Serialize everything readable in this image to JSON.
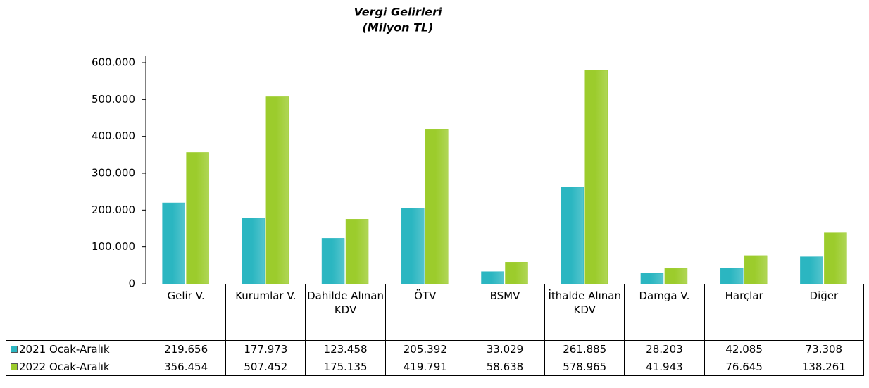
{
  "chart_data": {
    "type": "bar",
    "title": "Vergi Gelirleri",
    "subtitle": "(Milyon TL)",
    "categories": [
      "Gelir V.",
      "Kurumlar V.",
      "Dahilde Alınan KDV",
      "ÖTV",
      "BSMV",
      "İthalde Alınan KDV",
      "Damga V.",
      "Harçlar",
      "Diğer"
    ],
    "series": [
      {
        "name": "2021 Ocak-Aralık",
        "color": "#2bb6c1",
        "values": [
          219656,
          177973,
          123458,
          205392,
          33029,
          261885,
          28203,
          42085,
          73308
        ],
        "value_labels": [
          "219.656",
          "177.973",
          "123.458",
          "205.392",
          "33.029",
          "261.885",
          "28.203",
          "42.085",
          "73.308"
        ]
      },
      {
        "name": "2022 Ocak-Aralık",
        "color": "#9ccc2c",
        "values": [
          356454,
          507452,
          175135,
          419791,
          58638,
          578965,
          41943,
          76645,
          138261
        ],
        "value_labels": [
          "356.454",
          "507.452",
          "175.135",
          "419.791",
          "58.638",
          "578.965",
          "41.943",
          "76.645",
          "138.261"
        ]
      }
    ],
    "ylim": [
      0,
      600000
    ],
    "yticks": [
      0,
      {
        "value": 100000,
        "label": "100.000"
      },
      {
        "value": 200000,
        "label": "200.000"
      },
      {
        "value": 300000,
        "label": "300.000"
      },
      {
        "value": 400000,
        "label": "400.000"
      },
      {
        "value": 500000,
        "label": "500.000"
      },
      {
        "value": 600000,
        "label": "600.000"
      }
    ],
    "grid": false
  }
}
